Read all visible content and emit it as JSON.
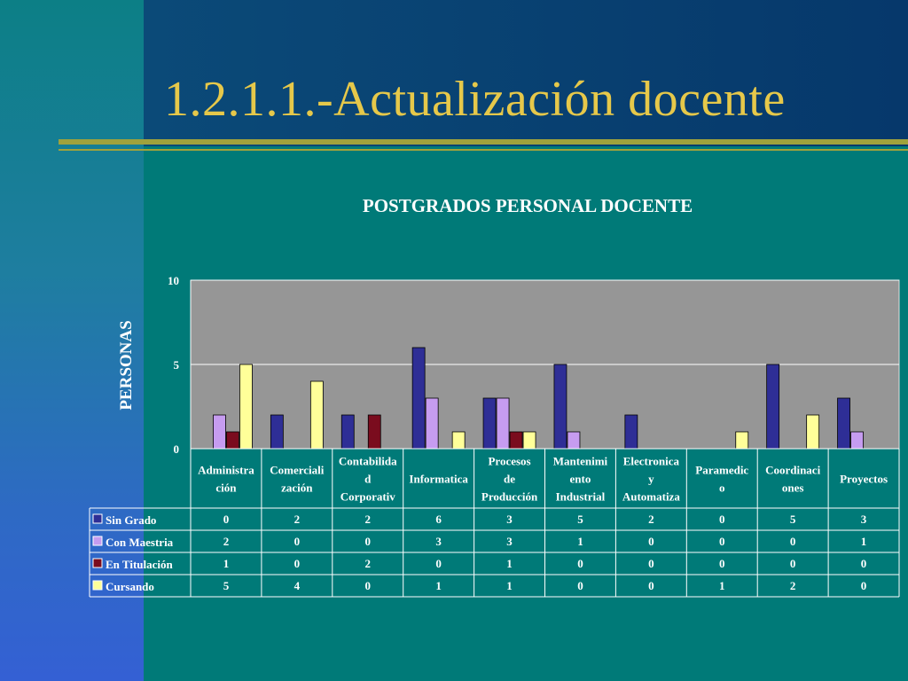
{
  "slide": {
    "title": "1.2.1.1.-Actualización docente"
  },
  "chart_data": {
    "type": "bar",
    "title": "POSTGRADOS PERSONAL DOCENTE",
    "ylabel": "PERSONAS",
    "xlabel": "",
    "ylim": [
      0,
      10
    ],
    "yticks": [
      0,
      5,
      10
    ],
    "grid": true,
    "legend": "table-left",
    "categories": [
      [
        "Administra",
        "ción"
      ],
      [
        "Comerciali",
        "zación"
      ],
      [
        "Contabilida",
        "d",
        "Corporativ"
      ],
      [
        "Informatica"
      ],
      [
        "Procesos",
        "de",
        "Producción"
      ],
      [
        "Mantenimi",
        "ento",
        "Industrial"
      ],
      [
        "Electronica",
        "y",
        "Automatiza"
      ],
      [
        "Paramedic",
        "o"
      ],
      [
        "Coordinaci",
        "ones"
      ],
      [
        "Proyectos"
      ]
    ],
    "series": [
      {
        "name": "Sin Grado",
        "color": "#2e2e96",
        "values": [
          0,
          2,
          2,
          6,
          3,
          5,
          2,
          0,
          5,
          3
        ]
      },
      {
        "name": "Con Maestria",
        "color": "#c69cf0",
        "values": [
          2,
          0,
          0,
          3,
          3,
          1,
          0,
          0,
          0,
          1
        ]
      },
      {
        "name": "En Titulación",
        "color": "#7a0c1e",
        "values": [
          1,
          0,
          2,
          0,
          1,
          0,
          0,
          0,
          0,
          0
        ]
      },
      {
        "name": "Cursando",
        "color": "#ffff99",
        "values": [
          5,
          4,
          0,
          1,
          1,
          0,
          0,
          1,
          2,
          0
        ]
      }
    ]
  }
}
